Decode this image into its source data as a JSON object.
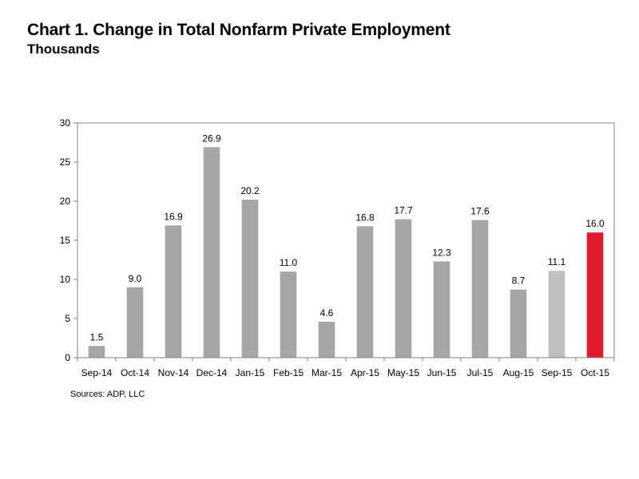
{
  "title": "Chart 1. Change in Total Nonfarm Private Employment",
  "subtitle": "Thousands",
  "source": "Sources: ADP, LLC",
  "colors": {
    "bar_default": "#a6a6a6",
    "bar_highlight_prev": "#c0c0c0",
    "bar_highlight_current": "#e0192d",
    "axis": "#808080",
    "grid": "#d9d9d9"
  },
  "chart_data": {
    "type": "bar",
    "categories": [
      "Sep-14",
      "Oct-14",
      "Nov-14",
      "Dec-14",
      "Jan-15",
      "Feb-15",
      "Mar-15",
      "Apr-15",
      "May-15",
      "Jun-15",
      "Jul-15",
      "Aug-15",
      "Sep-15",
      "Oct-15"
    ],
    "values": [
      1.5,
      9.0,
      16.9,
      26.9,
      20.2,
      11.0,
      4.6,
      16.8,
      17.7,
      12.3,
      17.6,
      8.7,
      11.1,
      16.0
    ],
    "value_labels": [
      "1.5",
      "9.0",
      "16.9",
      "26.9",
      "20.2",
      "11.0",
      "4.6",
      "16.8",
      "17.7",
      "12.3",
      "17.6",
      "8.7",
      "11.1",
      "16.0"
    ],
    "bar_styles": [
      "default",
      "default",
      "default",
      "default",
      "default",
      "default",
      "default",
      "default",
      "default",
      "default",
      "default",
      "default",
      "highlight_prev",
      "highlight_current"
    ],
    "yticks": [
      0,
      5,
      10,
      15,
      20,
      25,
      30
    ],
    "ylim": [
      0,
      30
    ],
    "xlabel": "",
    "ylabel": "",
    "grid": false,
    "legend": "none"
  }
}
